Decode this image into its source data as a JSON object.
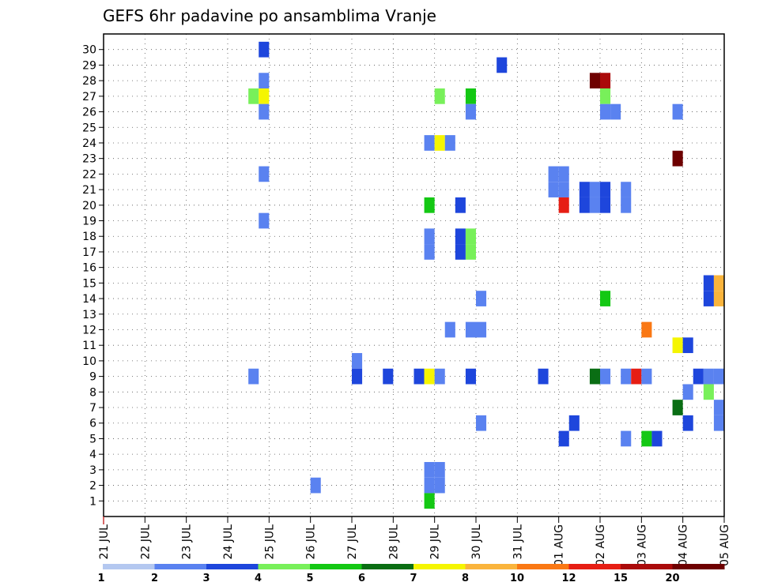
{
  "chart_data": {
    "type": "heatmap",
    "title": "GEFS 6hr padavine po ansamblima Vranje",
    "xlabel": "",
    "ylabel": "",
    "x_ticks": [
      "21 JUL",
      "22 JUL",
      "23 JUL",
      "24 JUL",
      "25 JUL",
      "26 JUL",
      "27 JUL",
      "28 JUL",
      "29 JUL",
      "30 JUL",
      "31 JUL",
      "01 AUG",
      "02 AUG",
      "03 AUG",
      "04 AUG",
      "05 AUG"
    ],
    "x_range_days": [
      0,
      15
    ],
    "y_ticks": [
      1,
      2,
      3,
      4,
      5,
      6,
      7,
      8,
      9,
      10,
      11,
      12,
      13,
      14,
      15,
      16,
      17,
      18,
      19,
      20,
      21,
      22,
      23,
      24,
      25,
      26,
      27,
      28,
      29,
      30
    ],
    "grid": true,
    "legend": {
      "placement": "bottom",
      "labels": [
        "1",
        "2",
        "3",
        "4",
        "5",
        "6",
        "7",
        "8",
        "10",
        "12",
        "15",
        "20"
      ],
      "colors": [
        "#b4c8f0",
        "#5a82f0",
        "#1e46dc",
        "#78f05a",
        "#14c814",
        "#0a6e14",
        "#f5f500",
        "#fab43c",
        "#fa7814",
        "#e61e14",
        "#aa0a0a",
        "#6e0000"
      ]
    },
    "cells": [
      [
        3.75,
        30,
        2
      ],
      [
        3.75,
        28,
        1
      ],
      [
        3.5,
        27,
        3
      ],
      [
        3.75,
        27,
        6
      ],
      [
        3.75,
        26,
        1
      ],
      [
        3.75,
        22,
        1
      ],
      [
        3.75,
        19,
        1
      ],
      [
        3.5,
        9,
        1
      ],
      [
        5,
        2,
        1
      ],
      [
        6,
        10,
        1
      ],
      [
        6,
        9,
        2
      ],
      [
        6.75,
        9,
        2
      ],
      [
        7.75,
        24,
        1
      ],
      [
        8,
        24,
        6
      ],
      [
        8.25,
        24,
        1
      ],
      [
        7.75,
        20,
        4
      ],
      [
        7.75,
        18,
        1
      ],
      [
        7.75,
        17,
        1
      ],
      [
        7.5,
        9,
        2
      ],
      [
        7.75,
        9,
        6
      ],
      [
        8,
        9,
        1
      ],
      [
        7.75,
        3,
        1
      ],
      [
        8,
        3,
        1
      ],
      [
        7.75,
        2,
        1
      ],
      [
        8,
        2,
        1
      ],
      [
        7.75,
        1,
        4
      ],
      [
        8,
        27,
        3
      ],
      [
        8.25,
        12,
        1
      ],
      [
        8.5,
        20,
        2
      ],
      [
        8.5,
        18,
        2
      ],
      [
        8.75,
        18,
        3
      ],
      [
        8.5,
        17,
        2
      ],
      [
        8.75,
        17,
        3
      ],
      [
        8.75,
        27,
        4
      ],
      [
        8.75,
        26,
        1
      ],
      [
        8.75,
        12,
        1
      ],
      [
        9,
        12,
        1
      ],
      [
        9,
        14,
        1
      ],
      [
        8.75,
        9,
        2
      ],
      [
        9,
        6,
        1
      ],
      [
        9.5,
        29,
        2
      ],
      [
        10.5,
        9,
        2
      ],
      [
        10.75,
        22,
        1
      ],
      [
        11,
        22,
        1
      ],
      [
        10.75,
        21,
        1
      ],
      [
        11,
        21,
        1
      ],
      [
        11,
        20,
        9
      ],
      [
        11,
        5,
        2
      ],
      [
        11.25,
        6,
        2
      ],
      [
        11.5,
        21,
        2
      ],
      [
        11.5,
        20,
        2
      ],
      [
        11.75,
        21,
        1
      ],
      [
        11.75,
        20,
        1
      ],
      [
        12,
        21,
        2
      ],
      [
        12,
        20,
        2
      ],
      [
        11.75,
        28,
        11
      ],
      [
        12,
        28,
        10
      ],
      [
        12,
        27,
        3
      ],
      [
        12,
        26,
        1
      ],
      [
        12.25,
        26,
        1
      ],
      [
        12,
        14,
        4
      ],
      [
        11.75,
        9,
        5
      ],
      [
        12,
        9,
        1
      ],
      [
        12.5,
        21,
        1
      ],
      [
        12.5,
        20,
        1
      ],
      [
        12.5,
        9,
        1
      ],
      [
        12.75,
        9,
        9
      ],
      [
        13,
        9,
        1
      ],
      [
        13,
        12,
        8
      ],
      [
        12.5,
        5,
        1
      ],
      [
        13,
        5,
        4
      ],
      [
        13.25,
        5,
        2
      ],
      [
        13.75,
        26,
        1
      ],
      [
        13.75,
        23,
        11
      ],
      [
        13.75,
        11,
        6
      ],
      [
        14,
        11,
        2
      ],
      [
        14,
        8,
        1
      ],
      [
        13.75,
        7,
        5
      ],
      [
        14,
        6,
        2
      ],
      [
        14.25,
        9,
        2
      ],
      [
        14.5,
        9,
        1
      ],
      [
        14.75,
        9,
        1
      ],
      [
        14.5,
        15,
        2
      ],
      [
        14.5,
        14,
        2
      ],
      [
        14.75,
        15,
        7
      ],
      [
        14.75,
        14,
        7
      ],
      [
        14.5,
        8,
        3
      ],
      [
        14.75,
        7,
        1
      ],
      [
        14.75,
        6,
        1
      ]
    ]
  }
}
